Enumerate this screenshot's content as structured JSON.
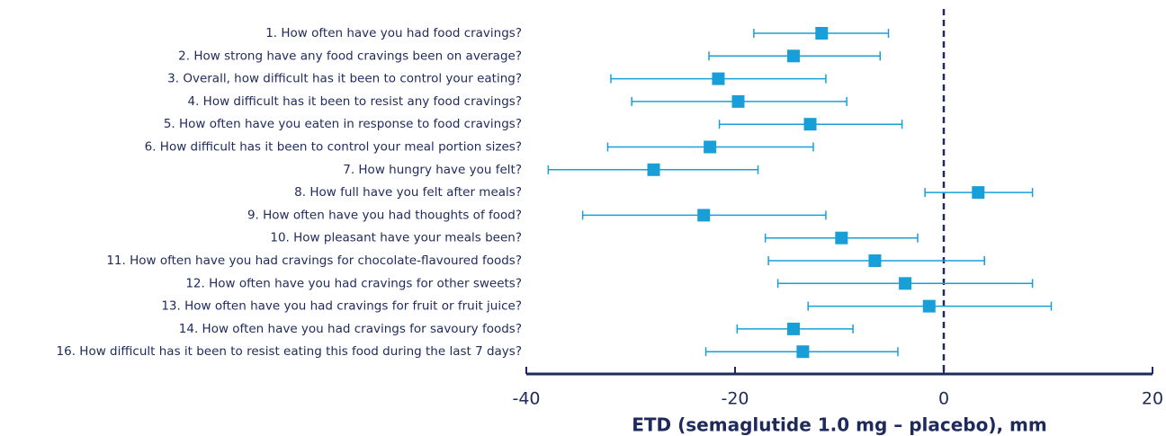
{
  "chart_data": {
    "type": "forest",
    "categories": [
      "1. How often have you had food cravings?",
      "2. How strong have any food cravings been on average?",
      "3. Overall, how difficult has it been to control your eating?",
      "4. How difficult has it been to resist any food cravings?",
      "5. How often have you eaten in response to food cravings?",
      "6. How difficult has it been to control your meal portion sizes?",
      "7. How hungry have you felt?",
      "8. How full have you felt after meals?",
      "9. How often have you had thoughts of food?",
      "10. How pleasant have your meals been?",
      "11. How often have you had cravings for chocolate-flavoured foods?",
      "12. How often have you had cravings for other sweets?",
      "13. How often have you had cravings for fruit or fruit juice?",
      "14. How often have you had cravings for savoury foods?",
      "16. How difficult has it been to resist eating this food during the last 7 days?"
    ],
    "values": [
      -11.7,
      -14.4,
      -21.6,
      -19.7,
      -12.8,
      -22.4,
      -27.8,
      3.3,
      -23.0,
      -9.8,
      -6.6,
      -3.7,
      -1.4,
      -14.4,
      -13.5
    ],
    "ci_low": [
      -18.2,
      -22.5,
      -31.9,
      -29.9,
      -21.5,
      -32.2,
      -37.9,
      -1.8,
      -34.6,
      -17.1,
      -16.8,
      -15.9,
      -13.0,
      -19.8,
      -22.8
    ],
    "ci_high": [
      -5.3,
      -6.1,
      -11.3,
      -9.3,
      -4.0,
      -12.5,
      -17.8,
      8.5,
      -11.3,
      -2.5,
      3.9,
      8.5,
      10.3,
      -8.7,
      -4.4
    ],
    "color": "#199fd8",
    "x_label": "ETD (semaglutide 1.0 mg – placebo), mm",
    "xlim": [
      -40,
      20
    ],
    "xticks": [
      -40,
      -20,
      0,
      20
    ],
    "reference_line": 0
  }
}
